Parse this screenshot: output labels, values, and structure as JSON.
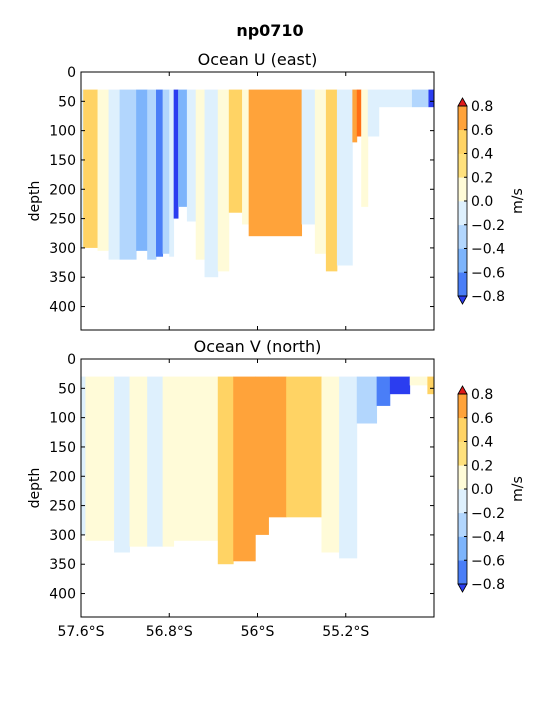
{
  "suptitle": "np0710",
  "chart_data": [
    {
      "type": "heatmap",
      "title": "Ocean U (east)",
      "ylabel": "depth",
      "xlabel": "",
      "xlim": [
        -57.6,
        -54.4
      ],
      "ylim": [
        440,
        0
      ],
      "x_ticks": [
        -57.6,
        -56.8,
        -56.0,
        -55.2
      ],
      "x_tick_labels": [
        "57.6°S",
        "56.8°S",
        "56°S",
        "55.2°S"
      ],
      "y_ticks": [
        0,
        50,
        100,
        150,
        200,
        250,
        300,
        350,
        400
      ],
      "y_tick_labels": [
        "0",
        "50",
        "100",
        "150",
        "200",
        "250",
        "300",
        "350",
        "400"
      ],
      "x_tick_labels_visible": false,
      "data_top_depth": 30,
      "colorbar": {
        "label": "m/s",
        "levels": [
          -0.8,
          -0.6,
          -0.4,
          -0.2,
          0.0,
          0.2,
          0.4,
          0.6,
          0.8
        ],
        "tick_labels": [
          "−0.8",
          "−0.6",
          "−0.4",
          "−0.2",
          "0.0",
          "0.2",
          "0.4",
          "0.6",
          "0.8"
        ],
        "colors": [
          "#2b3df0",
          "#4a7ef7",
          "#7db4fb",
          "#b2d6fd",
          "#def0fd",
          "#fffbd8",
          "#ffe17d",
          "#ffd364",
          "#ffa33a",
          "#ff6e14",
          "#e01a1a"
        ],
        "extend": "both"
      },
      "bands": [
        {
          "x0": -57.6,
          "x1": -57.58,
          "bottom": 300,
          "color": "#def0fd"
        },
        {
          "x0": -57.58,
          "x1": -57.45,
          "bottom": 300,
          "color": "#ffd364"
        },
        {
          "x0": -57.45,
          "x1": -57.35,
          "bottom": 305,
          "color": "#fffbd8"
        },
        {
          "x0": -57.35,
          "x1": -57.25,
          "bottom": 320,
          "color": "#def0fd"
        },
        {
          "x0": -57.25,
          "x1": -57.1,
          "bottom": 320,
          "color": "#b2d6fd"
        },
        {
          "x0": -57.1,
          "x1": -57.0,
          "bottom": 305,
          "color": "#7db4fb"
        },
        {
          "x0": -57.0,
          "x1": -56.92,
          "bottom": 320,
          "color": "#b2d6fd"
        },
        {
          "x0": -56.92,
          "x1": -56.86,
          "bottom": 315,
          "color": "#4a7ef7"
        },
        {
          "x0": -56.86,
          "x1": -56.8,
          "bottom": 310,
          "color": "#b2d6fd"
        },
        {
          "x0": -56.8,
          "x1": -56.76,
          "bottom": 315,
          "color": "#def0fd"
        },
        {
          "x0": -56.76,
          "x1": -56.72,
          "bottom": 250,
          "color": "#2b3df0"
        },
        {
          "x0": -56.72,
          "x1": -56.64,
          "bottom": 230,
          "color": "#7db4fb"
        },
        {
          "x0": -56.64,
          "x1": -56.56,
          "bottom": 255,
          "color": "#def0fd"
        },
        {
          "x0": -56.56,
          "x1": -56.48,
          "bottom": 320,
          "color": "#fffbd8"
        },
        {
          "x0": -56.48,
          "x1": -56.36,
          "bottom": 350,
          "color": "#def0fd"
        },
        {
          "x0": -56.36,
          "x1": -56.26,
          "bottom": 340,
          "color": "#fffbd8"
        },
        {
          "x0": -56.26,
          "x1": -56.14,
          "bottom": 240,
          "color": "#ffd364"
        },
        {
          "x0": -56.14,
          "x1": -56.08,
          "bottom": 260,
          "color": "#fffbd8"
        },
        {
          "x0": -56.08,
          "x1": -55.6,
          "bottom": 280,
          "color": "#ffa33a"
        },
        {
          "x0": -55.6,
          "x1": -55.48,
          "bottom": 260,
          "color": "#def0fd"
        },
        {
          "x0": -55.48,
          "x1": -55.38,
          "bottom": 310,
          "color": "#fffbd8"
        },
        {
          "x0": -55.38,
          "x1": -55.28,
          "bottom": 340,
          "color": "#ffd364"
        },
        {
          "x0": -55.28,
          "x1": -55.14,
          "bottom": 330,
          "color": "#def0fd"
        },
        {
          "x0": -55.14,
          "x1": -55.1,
          "bottom": 120,
          "color": "#ffa33a"
        },
        {
          "x0": -55.1,
          "x1": -55.06,
          "bottom": 110,
          "color": "#ff6e14"
        },
        {
          "x0": -55.06,
          "x1": -55.0,
          "bottom": 230,
          "color": "#fffbd8"
        },
        {
          "x0": -55.0,
          "x1": -54.9,
          "bottom": 110,
          "color": "#def0fd"
        },
        {
          "x0": -54.9,
          "x1": -54.6,
          "bottom": 60,
          "color": "#def0fd"
        },
        {
          "x0": -54.6,
          "x1": -54.45,
          "bottom": 60,
          "color": "#b2d6fd"
        },
        {
          "x0": -54.45,
          "x1": -54.4,
          "bottom": 60,
          "color": "#2b3df0"
        }
      ]
    },
    {
      "type": "heatmap",
      "title": "Ocean V (north)",
      "ylabel": "depth",
      "xlabel": "",
      "xlim": [
        -57.6,
        -54.4
      ],
      "ylim": [
        440,
        0
      ],
      "x_ticks": [
        -57.6,
        -56.8,
        -56.0,
        -55.2
      ],
      "x_tick_labels": [
        "57.6°S",
        "56.8°S",
        "56°S",
        "55.2°S"
      ],
      "y_ticks": [
        0,
        50,
        100,
        150,
        200,
        250,
        300,
        350,
        400
      ],
      "y_tick_labels": [
        "0",
        "50",
        "100",
        "150",
        "200",
        "250",
        "300",
        "350",
        "400"
      ],
      "x_tick_labels_visible": true,
      "data_top_depth": 30,
      "colorbar": {
        "label": "m/s",
        "levels": [
          -0.8,
          -0.6,
          -0.4,
          -0.2,
          0.0,
          0.2,
          0.4,
          0.6,
          0.8
        ],
        "tick_labels": [
          "−0.8",
          "−0.6",
          "−0.4",
          "−0.2",
          "0.0",
          "0.2",
          "0.4",
          "0.6",
          "0.8"
        ],
        "colors": [
          "#2b3df0",
          "#4a7ef7",
          "#7db4fb",
          "#b2d6fd",
          "#def0fd",
          "#fffbd8",
          "#ffe17d",
          "#ffd364",
          "#ffa33a",
          "#ff6e14",
          "#e01a1a"
        ],
        "extend": "both"
      },
      "bands": [
        {
          "x0": -57.6,
          "x1": -57.56,
          "bottom": 300,
          "color": "#def0fd"
        },
        {
          "x0": -57.56,
          "x1": -57.3,
          "bottom": 310,
          "color": "#fffbd8"
        },
        {
          "x0": -57.3,
          "x1": -57.16,
          "bottom": 330,
          "color": "#def0fd"
        },
        {
          "x0": -57.16,
          "x1": -57.0,
          "bottom": 320,
          "color": "#fffbd8"
        },
        {
          "x0": -57.0,
          "x1": -56.86,
          "bottom": 320,
          "color": "#def0fd"
        },
        {
          "x0": -56.86,
          "x1": -56.76,
          "bottom": 320,
          "color": "#fffbd8"
        },
        {
          "x0": -56.76,
          "x1": -56.36,
          "bottom": 310,
          "color": "#fffbd8"
        },
        {
          "x0": -56.36,
          "x1": -56.22,
          "bottom": 350,
          "color": "#ffd364"
        },
        {
          "x0": -56.22,
          "x1": -56.02,
          "bottom": 345,
          "color": "#ffa33a"
        },
        {
          "x0": -56.02,
          "x1": -55.9,
          "bottom": 300,
          "color": "#ffa33a"
        },
        {
          "x0": -55.9,
          "x1": -55.74,
          "bottom": 270,
          "color": "#ffa33a"
        },
        {
          "x0": -55.74,
          "x1": -55.42,
          "bottom": 270,
          "color": "#ffd364"
        },
        {
          "x0": -55.42,
          "x1": -55.26,
          "bottom": 330,
          "color": "#fffbd8"
        },
        {
          "x0": -55.26,
          "x1": -55.1,
          "bottom": 340,
          "color": "#def0fd"
        },
        {
          "x0": -55.1,
          "x1": -54.92,
          "bottom": 110,
          "color": "#b2d6fd"
        },
        {
          "x0": -54.92,
          "x1": -54.8,
          "bottom": 80,
          "color": "#4a7ef7"
        },
        {
          "x0": -54.8,
          "x1": -54.62,
          "bottom": 60,
          "color": "#2b3df0"
        },
        {
          "x0": -54.62,
          "x1": -54.46,
          "bottom": 45,
          "color": "#fffbd8"
        },
        {
          "x0": -54.46,
          "x1": -54.4,
          "bottom": 60,
          "color": "#ffd364"
        }
      ]
    }
  ]
}
